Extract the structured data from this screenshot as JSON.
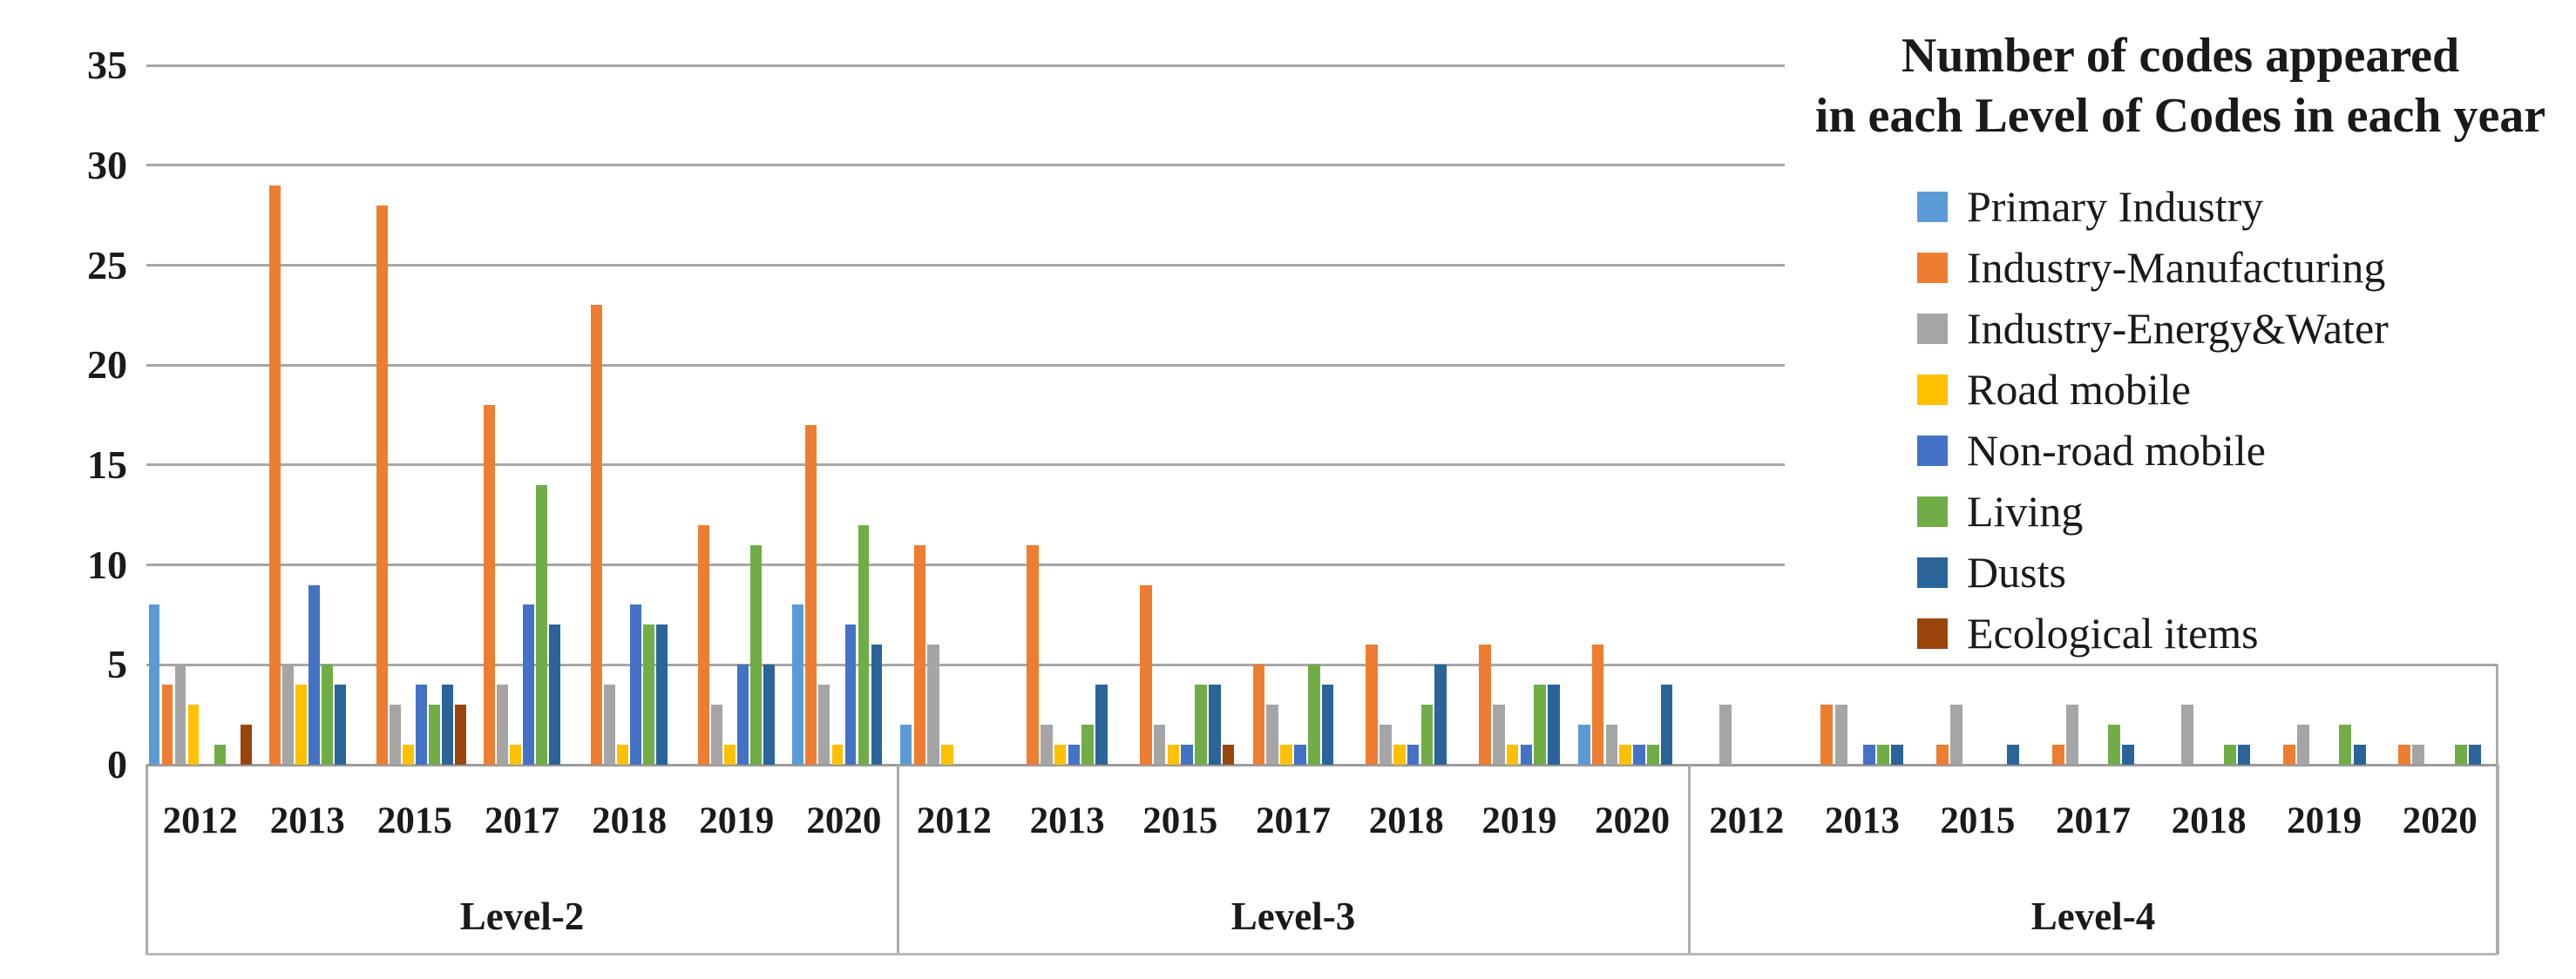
{
  "title": {
    "line1": "Number of codes appeared",
    "line2": "in each Level of Codes in each year"
  },
  "y_axis": {
    "tick_labels": [
      "0",
      "5",
      "10",
      "15",
      "20",
      "25",
      "30",
      "35"
    ]
  },
  "x_axis": {
    "years": [
      "2012",
      "2013",
      "2015",
      "2017",
      "2018",
      "2019",
      "2020"
    ],
    "group_labels": [
      "Level-2",
      "Level-3",
      "Level-4"
    ]
  },
  "legend": {
    "items": [
      {
        "label": "Primary Industry",
        "color": "#5B9BD5"
      },
      {
        "label": "Industry-Manufacturing",
        "color": "#ED7D31"
      },
      {
        "label": "Industry-Energy&Water",
        "color": "#A5A5A5"
      },
      {
        "label": "Road mobile",
        "color": "#FFC000"
      },
      {
        "label": "Non-road mobile",
        "color": "#4472C4"
      },
      {
        "label": "Living",
        "color": "#70AD47"
      },
      {
        "label": "Dusts",
        "color": "#2A6499"
      },
      {
        "label": "Ecological items",
        "color": "#9A450C"
      }
    ]
  },
  "chart_data": {
    "type": "bar",
    "title": "Number of codes appeared in each Level of Codes in each year",
    "xlabel": "",
    "ylabel": "",
    "ylim": [
      0,
      35
    ],
    "yticks": [
      0,
      5,
      10,
      15,
      20,
      25,
      30,
      35
    ],
    "grid": true,
    "legend_position": "top-right",
    "categories_years": [
      "2012",
      "2013",
      "2015",
      "2017",
      "2018",
      "2019",
      "2020"
    ],
    "series_colors": {
      "Primary Industry": "#5B9BD5",
      "Industry-Manufacturing": "#ED7D31",
      "Industry-Energy&Water": "#A5A5A5",
      "Road mobile": "#FFC000",
      "Non-road mobile": "#4472C4",
      "Living": "#70AD47",
      "Dusts": "#2A6499",
      "Ecological items": "#9A450C"
    },
    "groups": [
      {
        "label": "Level-2",
        "series": [
          {
            "name": "Primary Industry",
            "values": [
              8,
              0,
              0,
              0,
              0,
              0,
              8
            ]
          },
          {
            "name": "Industry-Manufacturing",
            "values": [
              4,
              29,
              28,
              18,
              23,
              12,
              17
            ]
          },
          {
            "name": "Industry-Energy&Water",
            "values": [
              5,
              5,
              3,
              4,
              4,
              3,
              4
            ]
          },
          {
            "name": "Road mobile",
            "values": [
              3,
              4,
              1,
              1,
              1,
              1,
              1
            ]
          },
          {
            "name": "Non-road mobile",
            "values": [
              0,
              9,
              4,
              8,
              8,
              5,
              7
            ]
          },
          {
            "name": "Living",
            "values": [
              1,
              5,
              3,
              14,
              7,
              11,
              12
            ]
          },
          {
            "name": "Dusts",
            "values": [
              0,
              4,
              4,
              7,
              7,
              5,
              6
            ]
          },
          {
            "name": "Ecological items",
            "values": [
              2,
              0,
              3,
              0,
              0,
              0,
              0
            ]
          }
        ]
      },
      {
        "label": "Level-3",
        "series": [
          {
            "name": "Primary Industry",
            "values": [
              2,
              0,
              0,
              0,
              0,
              0,
              2
            ]
          },
          {
            "name": "Industry-Manufacturing",
            "values": [
              11,
              11,
              9,
              5,
              6,
              6,
              6
            ]
          },
          {
            "name": "Industry-Energy&Water",
            "values": [
              6,
              2,
              2,
              3,
              2,
              3,
              2
            ]
          },
          {
            "name": "Road mobile",
            "values": [
              1,
              1,
              1,
              1,
              1,
              1,
              1
            ]
          },
          {
            "name": "Non-road mobile",
            "values": [
              0,
              1,
              1,
              1,
              1,
              1,
              1
            ]
          },
          {
            "name": "Living",
            "values": [
              0,
              2,
              4,
              5,
              3,
              4,
              1
            ]
          },
          {
            "name": "Dusts",
            "values": [
              0,
              4,
              4,
              4,
              5,
              4,
              4
            ]
          },
          {
            "name": "Ecological items",
            "values": [
              0,
              0,
              1,
              0,
              0,
              0,
              0
            ]
          }
        ]
      },
      {
        "label": "Level-4",
        "series": [
          {
            "name": "Primary Industry",
            "values": [
              0,
              0,
              0,
              0,
              0,
              0,
              0
            ]
          },
          {
            "name": "Industry-Manufacturing",
            "values": [
              0,
              3,
              1,
              1,
              0,
              1,
              1
            ]
          },
          {
            "name": "Industry-Energy&Water",
            "values": [
              3,
              3,
              3,
              3,
              3,
              2,
              1
            ]
          },
          {
            "name": "Road mobile",
            "values": [
              0,
              0,
              0,
              0,
              0,
              0,
              0
            ]
          },
          {
            "name": "Non-road mobile",
            "values": [
              0,
              1,
              0,
              0,
              0,
              0,
              0
            ]
          },
          {
            "name": "Living",
            "values": [
              0,
              1,
              0,
              2,
              1,
              2,
              1
            ]
          },
          {
            "name": "Dusts",
            "values": [
              0,
              1,
              1,
              1,
              1,
              1,
              1
            ]
          },
          {
            "name": "Ecological items",
            "values": [
              0,
              0,
              0,
              0,
              0,
              0,
              0
            ]
          }
        ]
      }
    ]
  }
}
